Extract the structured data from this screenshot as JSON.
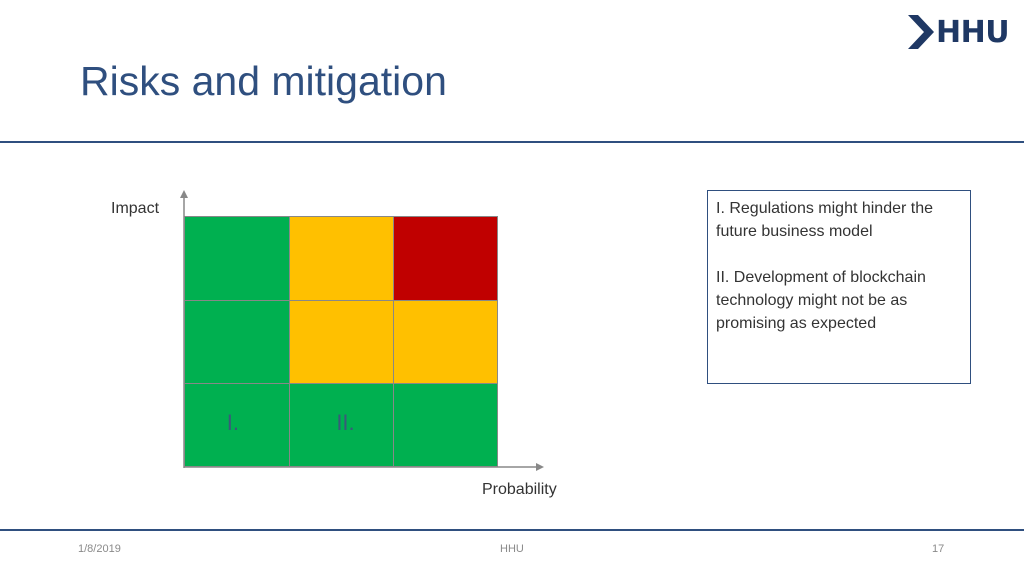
{
  "logo": {
    "text": "HHU"
  },
  "slide": {
    "title": "Risks and mitigation"
  },
  "chart_data": {
    "type": "heatmap",
    "title": "",
    "ylabel": "Impact",
    "xlabel": "Probability",
    "rows": 3,
    "cols": 3,
    "cells": [
      {
        "row": 0,
        "col": 0,
        "level": "green",
        "color": "#00b050",
        "label": ""
      },
      {
        "row": 0,
        "col": 1,
        "level": "yellow",
        "color": "#ffc000",
        "label": ""
      },
      {
        "row": 0,
        "col": 2,
        "level": "red",
        "color": "#c00000",
        "label": ""
      },
      {
        "row": 1,
        "col": 0,
        "level": "green",
        "color": "#00b050",
        "label": ""
      },
      {
        "row": 1,
        "col": 1,
        "level": "yellow",
        "color": "#ffc000",
        "label": ""
      },
      {
        "row": 1,
        "col": 2,
        "level": "yellow",
        "color": "#ffc000",
        "label": ""
      },
      {
        "row": 2,
        "col": 0,
        "level": "green",
        "color": "#00b050",
        "label": "I."
      },
      {
        "row": 2,
        "col": 1,
        "level": "green",
        "color": "#00b050",
        "label": "II."
      },
      {
        "row": 2,
        "col": 2,
        "level": "green",
        "color": "#00b050",
        "label": ""
      }
    ]
  },
  "notes": {
    "items": [
      "I. Regulations might hinder the future business model",
      "II. Development of blockchain technology might not be as promising as expected"
    ]
  },
  "footer": {
    "date": "1/8/2019",
    "center": "HHU",
    "page": "17"
  }
}
